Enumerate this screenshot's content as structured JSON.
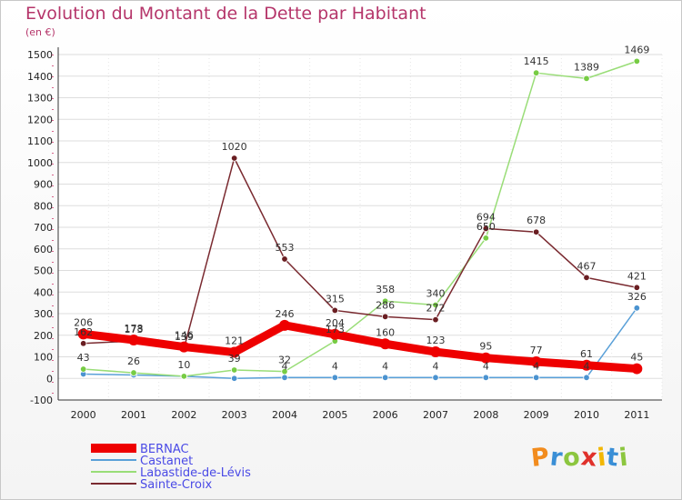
{
  "title": "Evolution du Montant de la Dette par Habitant",
  "unit": "(en €)",
  "brand": "Proxiti",
  "brand_colors": [
    "#f28c1e",
    "#3a8fd6",
    "#8cc63f",
    "#e0312b",
    "#f2b705",
    "#3a8fd6",
    "#8cc63f"
  ],
  "chart_data": {
    "type": "line",
    "title": "Evolution du Montant de la Dette par Habitant",
    "ylabel": "(en €)",
    "x": [
      "2000",
      "2001",
      "2002",
      "2003",
      "2004",
      "2005",
      "2006",
      "2007",
      "2008",
      "2009",
      "2010",
      "2011"
    ],
    "y_ticks": [
      -100,
      0,
      100,
      200,
      300,
      400,
      500,
      600,
      700,
      800,
      900,
      1000,
      1100,
      1200,
      1300,
      1400,
      1500
    ],
    "ylim": [
      -100,
      1500
    ],
    "grid": true,
    "legend": "bottom-left",
    "series": [
      {
        "name": "BERNAC",
        "color": "#ee0000",
        "values": [
          206,
          178,
          146,
          121,
          246,
          204,
          160,
          123,
          95,
          77,
          61,
          45
        ]
      },
      {
        "name": "Castanet",
        "color": "#5aa0d8",
        "values": [
          20,
          16,
          10,
          0,
          4,
          4,
          4,
          4,
          4,
          4,
          4,
          326
        ]
      },
      {
        "name": "Labastide-de-Lévis",
        "color": "#99dd77",
        "values": [
          43,
          26,
          10,
          39,
          32,
          173,
          358,
          340,
          650,
          1415,
          1389,
          1469
        ]
      },
      {
        "name": "Sainte-Croix",
        "color": "#7a2a30",
        "values": [
          162,
          173,
          139,
          1020,
          553,
          315,
          286,
          272,
          694,
          678,
          467,
          421
        ]
      }
    ],
    "data_labels": [
      {
        "series": 0,
        "labels": [
          "206",
          "178",
          "146",
          "121",
          "246",
          "204",
          "160",
          "123",
          "95",
          "77",
          "61",
          "45"
        ]
      },
      {
        "series": 1,
        "labels": [
          "",
          "",
          "",
          "",
          "4",
          "4",
          "4",
          "4",
          "4",
          "4",
          "4",
          "326"
        ]
      },
      {
        "series": 2,
        "labels": [
          "43",
          "26",
          "10",
          "39",
          "32",
          "173",
          "358",
          "340",
          "650",
          "1415",
          "1389",
          "1469"
        ]
      },
      {
        "series": 3,
        "labels": [
          "162",
          "173",
          "139",
          "1020",
          "553",
          "315",
          "286",
          "272",
          "694",
          "678",
          "467",
          "421"
        ]
      }
    ]
  }
}
